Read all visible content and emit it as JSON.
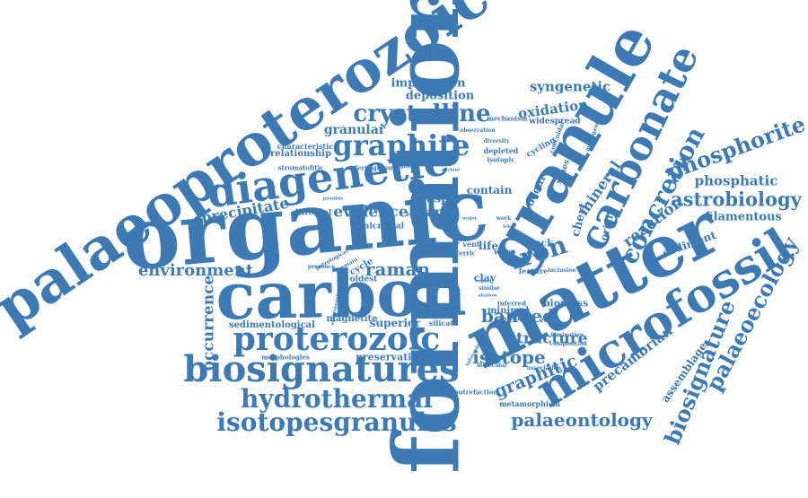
{
  "theme": {
    "word_color": "#3d7ab3",
    "background": "#ffffff"
  },
  "words": [
    "formation",
    "organic",
    "carbon",
    "matter",
    "palaeoproterozoic",
    "granule",
    "microfossil",
    "diagenetic",
    "biosignatures",
    "proterozoic",
    "carbonate",
    "graphite",
    "isotopesgranules",
    "hydrothermal",
    "iron",
    "crystalline",
    "concretion",
    "palaeoecology",
    "biosignature",
    "phosphorite",
    "astrobiology",
    "raman",
    "environment",
    "evidence",
    "precipitate",
    "palaeontology",
    "banded",
    "isotope",
    "structure",
    "graphitic",
    "reaction",
    "precambrian",
    "occurrence",
    "phosphatic",
    "filamentous",
    "oxidation",
    "syngenetic",
    "implication",
    "deposition",
    "granular",
    "relationship",
    "characteristic",
    "sediment",
    "mineral",
    "assemblage",
    "contain",
    "earth",
    "jasper",
    "superior",
    "preservation",
    "sedimentological",
    "magnetite",
    "biomass",
    "clay",
    "rock",
    "occur",
    "chert",
    "origin",
    "different",
    "microbial",
    "cycle",
    "oldest",
    "minimal",
    "widespread",
    "stromatolitic",
    "ferruginous",
    "cycling",
    "depleted",
    "isotopic",
    "diversity",
    "mechanism",
    "observation",
    "life",
    "wave",
    "vent",
    "feature",
    "inferred",
    "consistent",
    "silicate",
    "metamorphism",
    "putrefaction",
    "molecular",
    "association",
    "lamination",
    "composition",
    "morphologies",
    "presence",
    "petrological",
    "remain",
    "xanes",
    "michigamme",
    "coccoidal",
    "ferric",
    "similar",
    "late",
    "record",
    "product",
    "primary",
    "equidimensional",
    "major",
    "work",
    "lake",
    "result",
    "inclusion",
    "spheroidal",
    "possible",
    "report",
    "shallow",
    "ancient"
  ]
}
